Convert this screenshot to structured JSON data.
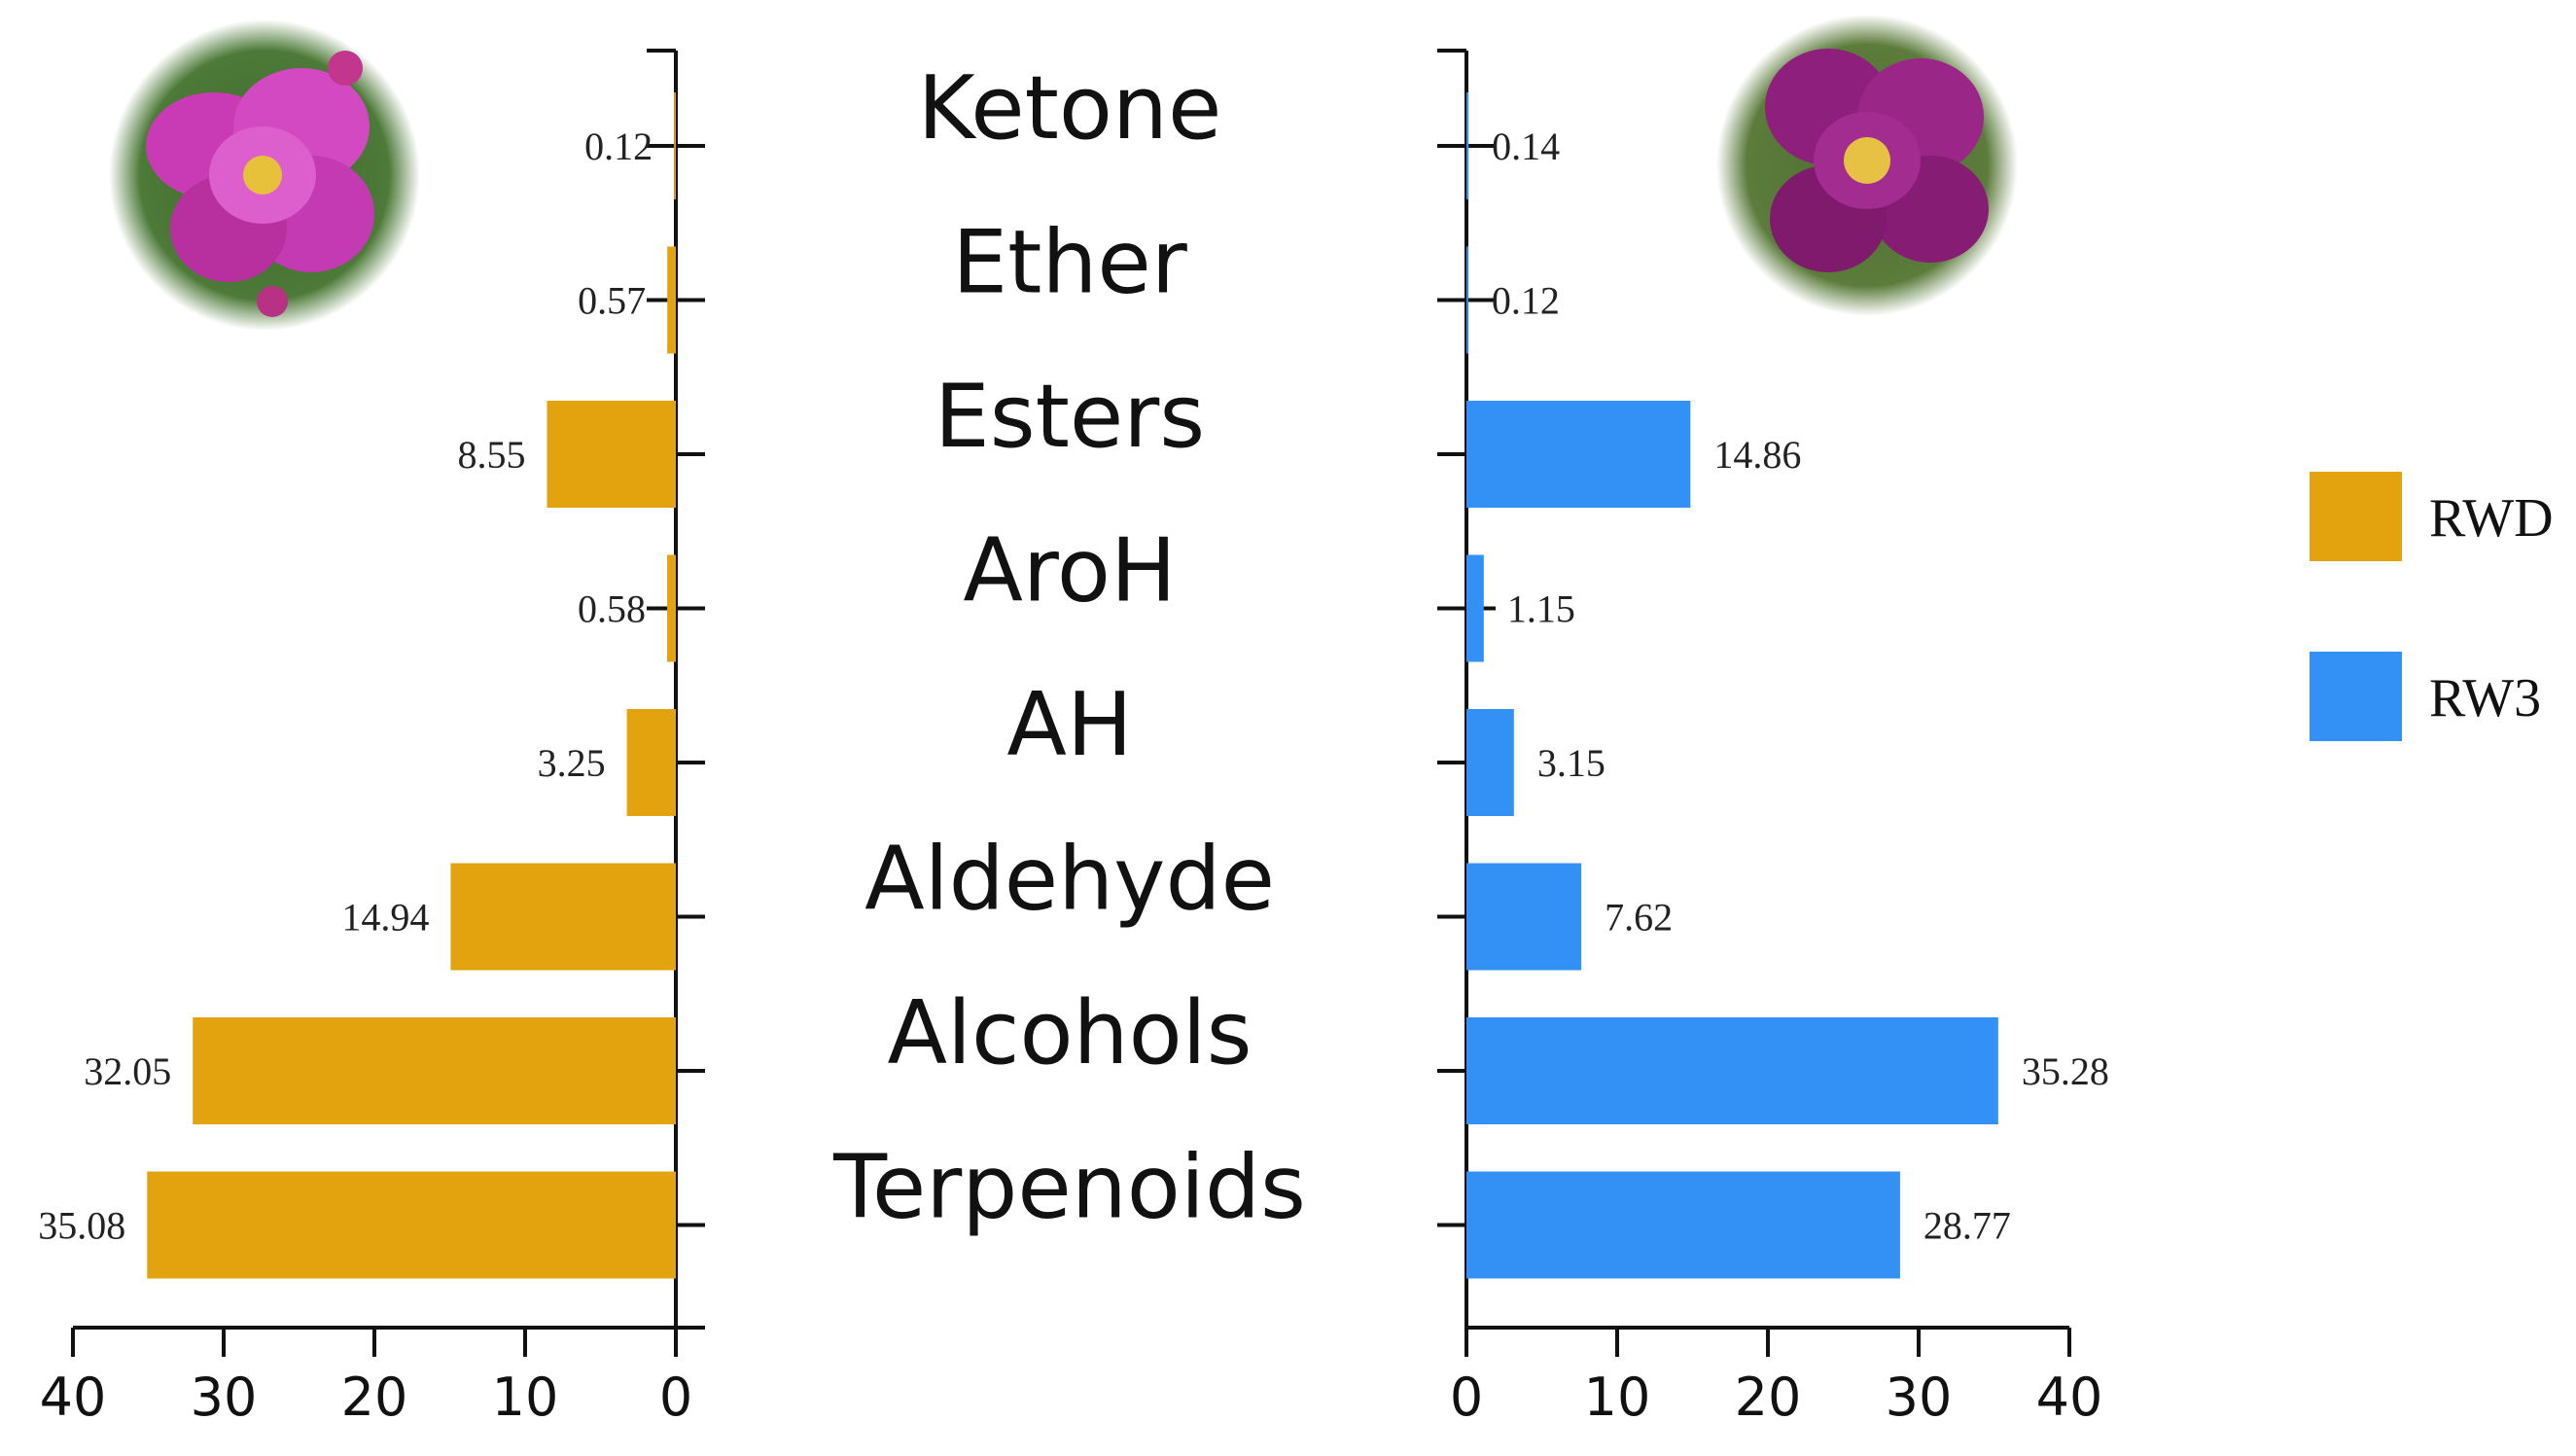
{
  "chart_data": {
    "type": "bar",
    "layout": "mirrored-horizontal",
    "categories": [
      "Ketone",
      "Ether",
      "Esters",
      "AroH",
      "AH",
      "Aldehyde",
      "Alcohols",
      "Terpenoids"
    ],
    "series": [
      {
        "name": "RWD",
        "side": "left",
        "color": "#E3A30E",
        "values": [
          0.12,
          0.57,
          8.55,
          0.58,
          3.25,
          14.94,
          32.05,
          35.08
        ],
        "labels": [
          "0.12",
          "0.57",
          "8.55",
          "0.58",
          "3.25",
          "14.94",
          "32.05",
          "35.08"
        ]
      },
      {
        "name": "RW3",
        "side": "right",
        "color": "#3391F5",
        "values": [
          0.14,
          0.12,
          14.86,
          1.15,
          3.15,
          7.62,
          35.28,
          28.77
        ],
        "labels": [
          "0.14",
          "0.12",
          "14.86",
          "1.15",
          "3.15",
          "7.62",
          "35.28",
          "28.77"
        ]
      }
    ],
    "xlim": [
      0,
      40
    ],
    "xticks": [
      "0",
      "10",
      "20",
      "30",
      "40"
    ],
    "legend": [
      "RWD",
      "RW3"
    ],
    "legend_position": "right"
  },
  "images": {
    "left_photo": "pink wild rose flower",
    "right_photo": "purple wild rose flower"
  }
}
